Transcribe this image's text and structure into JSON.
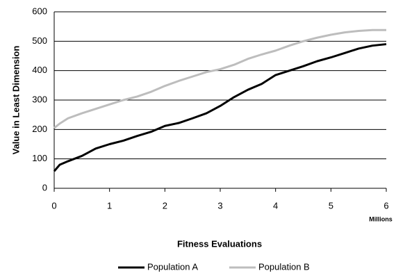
{
  "chart_data": {
    "type": "line",
    "x_axis_label": "Fitness Evaluations",
    "y_axis_label": "Value in Least Dimension",
    "x_unit_label": "Millions",
    "x": [
      0,
      0.1,
      0.25,
      0.5,
      0.75,
      1,
      1.25,
      1.5,
      1.75,
      2,
      2.25,
      2.5,
      2.75,
      3,
      3.25,
      3.5,
      3.75,
      4,
      4.25,
      4.5,
      4.75,
      5,
      5.25,
      5.5,
      5.75,
      6
    ],
    "series": [
      {
        "name": "Population A",
        "color": "#000000",
        "values": [
          58,
          80,
          92,
          110,
          135,
          150,
          162,
          178,
          192,
          212,
          222,
          238,
          255,
          280,
          310,
          335,
          355,
          385,
          400,
          415,
          432,
          445,
          460,
          475,
          485,
          490
        ]
      },
      {
        "name": "Population B",
        "color": "#bdbdbd",
        "values": [
          205,
          220,
          238,
          255,
          270,
          285,
          300,
          312,
          328,
          348,
          365,
          380,
          395,
          405,
          420,
          440,
          455,
          468,
          485,
          500,
          512,
          522,
          530,
          535,
          538,
          538
        ]
      }
    ],
    "xlim": [
      0,
      6
    ],
    "xticks": [
      0,
      1,
      2,
      3,
      4,
      5,
      6
    ],
    "ylim": [
      0,
      600
    ],
    "yticks": [
      0,
      100,
      200,
      300,
      400,
      500,
      600
    ],
    "grid": true,
    "legend": "bottom"
  }
}
